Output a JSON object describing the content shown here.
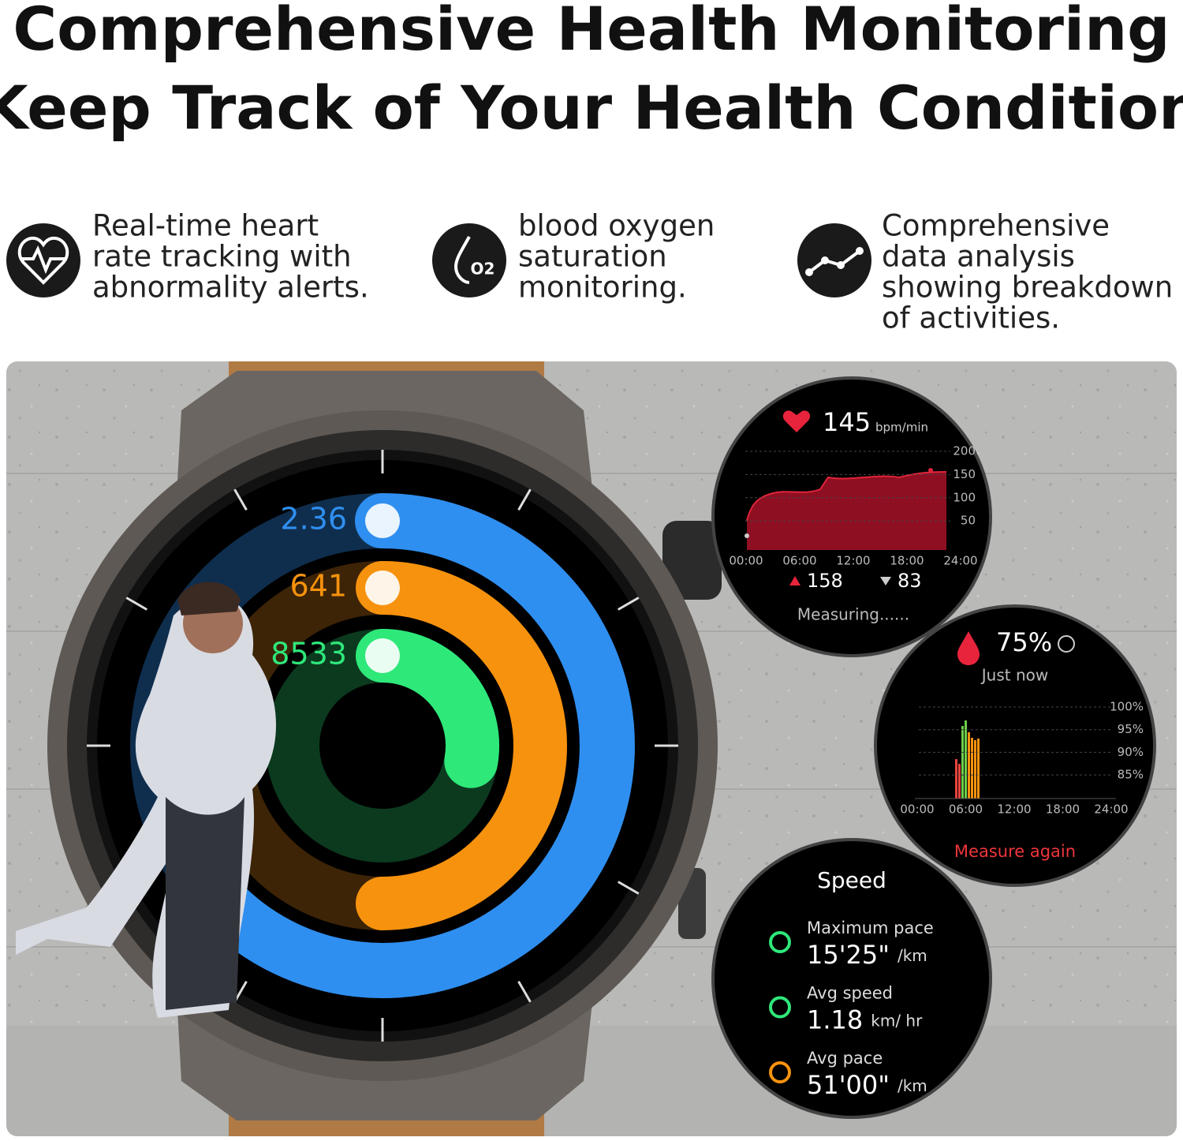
{
  "header": {
    "title_lines": [
      "Comprehensive Health Monitoring",
      "Keep Track of Your Health Condition"
    ]
  },
  "features": [
    {
      "lines": [
        "Real-time heart",
        "rate tracking with",
        "abnormality alerts."
      ]
    },
    {
      "lines": [
        "blood oxygen",
        "saturation",
        "monitoring."
      ]
    },
    {
      "lines": [
        "Comprehensive",
        "data analysis",
        "showing breakdown",
        "of activities."
      ]
    }
  ],
  "watch_face": {
    "rings": [
      "2.36",
      "641",
      "8533"
    ]
  },
  "heart_rate": {
    "value": "145",
    "unit": "bpm/min",
    "y_labels": [
      "200",
      "150",
      "100",
      "50"
    ],
    "x_labels": [
      "00:00",
      "06:00",
      "12:00",
      "18:00",
      "24:00"
    ],
    "max": "158",
    "min": "83",
    "status": "Measuring......"
  },
  "blood_oxygen": {
    "value": "75%",
    "time": "Just now",
    "y_labels": [
      "100%",
      "95%",
      "90%",
      "85%"
    ],
    "x_labels": [
      "00:00",
      "06:00",
      "12:00",
      "18:00",
      "24:00"
    ],
    "action": "Measure again"
  },
  "speed": {
    "title": "Speed",
    "rows": [
      {
        "label": "Maximum pace",
        "value": "15'25\"",
        "unit": "/km"
      },
      {
        "label": "Avg speed",
        "value": "1.18",
        "unit": "km/ hr"
      },
      {
        "label": "Avg pace",
        "value": "51'00\"",
        "unit": "/km"
      }
    ]
  }
}
